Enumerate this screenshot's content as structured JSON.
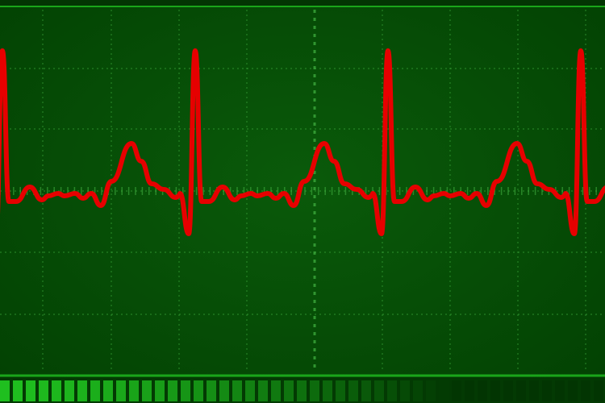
{
  "colors": {
    "background": "#064f06",
    "background_edge": "#003a00",
    "grid": "#3fae3f",
    "trace": "#e60000",
    "frame_line": "#1aa51a",
    "bar_bright": "#1fbf1f",
    "bar_dark": "#023502"
  },
  "trace": {
    "beats_visible": 4,
    "waveform": "ecg-sinus-rhythm"
  },
  "signal_bar": {
    "segments": 47,
    "lit_fraction": 0.75
  }
}
